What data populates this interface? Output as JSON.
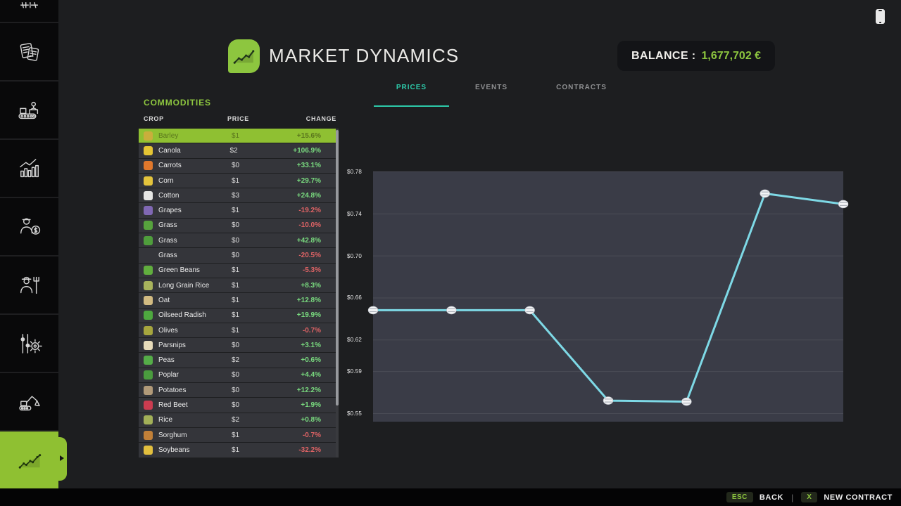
{
  "header": {
    "title": "MARKET DYNAMICS",
    "balance_label": "BALANCE :",
    "balance_value": "1,677,702 €",
    "accent_green": "#8dc63f"
  },
  "tabs": [
    {
      "label": "PRICES",
      "active": true
    },
    {
      "label": "EVENTS",
      "active": false
    },
    {
      "label": "CONTRACTS",
      "active": false
    }
  ],
  "commodities": {
    "title": "COMMODITIES",
    "columns": [
      "CROP",
      "PRICE",
      "CHANGE"
    ],
    "rows": [
      {
        "crop": "Barley",
        "price": "$1",
        "change": "+15.6%",
        "dir": "up",
        "selected": true,
        "icon_color": "#c9ae3c"
      },
      {
        "crop": "Canola",
        "price": "$2",
        "change": "+106.9%",
        "dir": "up",
        "selected": false,
        "icon_color": "#e5c534"
      },
      {
        "crop": "Carrots",
        "price": "$0",
        "change": "+33.1%",
        "dir": "up",
        "selected": false,
        "icon_color": "#e0782c"
      },
      {
        "crop": "Corn",
        "price": "$1",
        "change": "+29.7%",
        "dir": "up",
        "selected": false,
        "icon_color": "#e4c43c"
      },
      {
        "crop": "Cotton",
        "price": "$3",
        "change": "+24.8%",
        "dir": "up",
        "selected": false,
        "icon_color": "#e6e6e4"
      },
      {
        "crop": "Grapes",
        "price": "$1",
        "change": "-19.2%",
        "dir": "down",
        "selected": false,
        "icon_color": "#8068b4"
      },
      {
        "crop": "Grass",
        "price": "$0",
        "change": "-10.0%",
        "dir": "down",
        "selected": false,
        "icon_color": "#57a33d"
      },
      {
        "crop": "Grass",
        "price": "$0",
        "change": "+42.8%",
        "dir": "up",
        "selected": false,
        "icon_color": "#4f9e3c"
      },
      {
        "crop": "Grass",
        "price": "$0",
        "change": "-20.5%",
        "dir": "down",
        "selected": false,
        "icon_color": null
      },
      {
        "crop": "Green Beans",
        "price": "$1",
        "change": "-5.3%",
        "dir": "down",
        "selected": false,
        "icon_color": "#61ae3e"
      },
      {
        "crop": "Long Grain Rice",
        "price": "$1",
        "change": "+8.3%",
        "dir": "up",
        "selected": false,
        "icon_color": "#a8b35c"
      },
      {
        "crop": "Oat",
        "price": "$1",
        "change": "+12.8%",
        "dir": "up",
        "selected": false,
        "icon_color": "#d2bb82"
      },
      {
        "crop": "Oilseed Radish",
        "price": "$1",
        "change": "+19.9%",
        "dir": "up",
        "selected": false,
        "icon_color": "#4ea83f"
      },
      {
        "crop": "Olives",
        "price": "$1",
        "change": "-0.7%",
        "dir": "down",
        "selected": false,
        "icon_color": "#a6a63e"
      },
      {
        "crop": "Parsnips",
        "price": "$0",
        "change": "+3.1%",
        "dir": "up",
        "selected": false,
        "icon_color": "#e7dbba"
      },
      {
        "crop": "Peas",
        "price": "$2",
        "change": "+0.6%",
        "dir": "up",
        "selected": false,
        "icon_color": "#55ad48"
      },
      {
        "crop": "Poplar",
        "price": "$0",
        "change": "+4.4%",
        "dir": "up",
        "selected": false,
        "icon_color": "#4a9c3e"
      },
      {
        "crop": "Potatoes",
        "price": "$0",
        "change": "+12.2%",
        "dir": "up",
        "selected": false,
        "icon_color": "#b19a79"
      },
      {
        "crop": "Red Beet",
        "price": "$0",
        "change": "+1.9%",
        "dir": "up",
        "selected": false,
        "icon_color": "#cb3c50"
      },
      {
        "crop": "Rice",
        "price": "$2",
        "change": "+0.8%",
        "dir": "up",
        "selected": false,
        "icon_color": "#a2b058"
      },
      {
        "crop": "Sorghum",
        "price": "$1",
        "change": "-0.7%",
        "dir": "down",
        "selected": false,
        "icon_color": "#c28038"
      },
      {
        "crop": "Soybeans",
        "price": "$1",
        "change": "-32.2%",
        "dir": "down",
        "selected": false,
        "icon_color": "#e2bf3e"
      }
    ]
  },
  "chart_data": {
    "type": "line",
    "series": [
      {
        "name": "price",
        "values": [
          0.648,
          0.648,
          0.648,
          0.562,
          0.561,
          0.759,
          0.749
        ]
      }
    ],
    "yticks": [
      0.78,
      0.74,
      0.7,
      0.66,
      0.62,
      0.59,
      0.55
    ],
    "ylabels": [
      "$0.78",
      "$0.74",
      "$0.70",
      "$0.66",
      "$0.62",
      "$0.59",
      "$0.55"
    ],
    "ylim": [
      0.55,
      0.78
    ],
    "grid": true,
    "legend": "none",
    "line_color": "#7ed9e6",
    "marker": "white-pill",
    "bg_color": "#3a3c47",
    "grid_color": "#53555f"
  },
  "footer": {
    "back_key": "ESC",
    "back_label": "BACK",
    "separator": "|",
    "new_key": "X",
    "new_label": "NEW CONTRACT"
  },
  "sidebar": {
    "items": [
      "cut-off-icon",
      "documents-icon",
      "production-icon",
      "statistics-icon",
      "finances-icon",
      "worker-icon",
      "settings-icon",
      "construction-icon",
      "market-trend-icon"
    ],
    "active_item": "market-trend-icon"
  }
}
